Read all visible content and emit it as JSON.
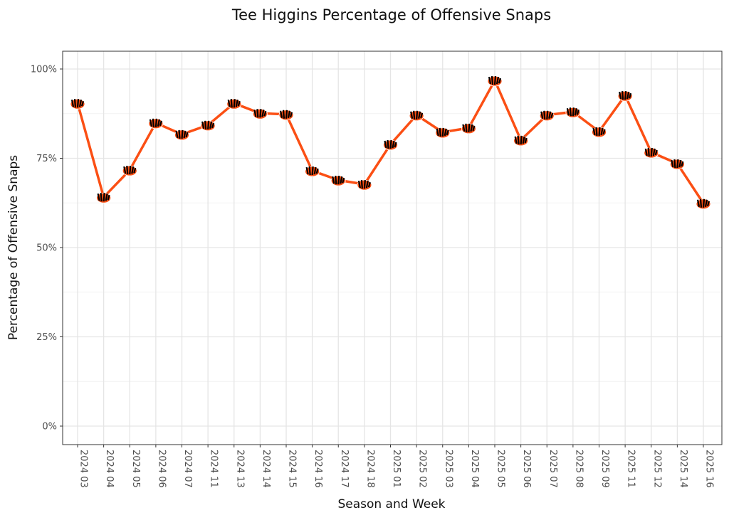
{
  "chart_data": {
    "type": "line",
    "title": "Tee Higgins Percentage of Offensive Snaps",
    "xlabel": "Season and Week",
    "ylabel": "Percentage of Offensive Snaps",
    "ylim": [
      0,
      100
    ],
    "yticks": [
      0,
      25,
      50,
      75,
      100
    ],
    "ytick_labels": [
      "0%",
      "25%",
      "50%",
      "75%",
      "100%"
    ],
    "grid": true,
    "line_color": "#FB4F14",
    "marker": "bengals-helmet-icon",
    "categories": [
      "2024 03",
      "2024 04",
      "2024 05",
      "2024 06",
      "2024 07",
      "2024 11",
      "2024 13",
      "2024 14",
      "2024 15",
      "2024 16",
      "2024 17",
      "2024 18",
      "2025 01",
      "2025 02",
      "2025 03",
      "2025 04",
      "2025 05",
      "2025 06",
      "2025 07",
      "2025 08",
      "2025 09",
      "2025 11",
      "2025 12",
      "2025 14",
      "2025 16"
    ],
    "values": [
      90.4,
      64.1,
      71.7,
      84.9,
      81.7,
      84.3,
      90.4,
      87.6,
      87.3,
      71.5,
      68.9,
      67.7,
      78.9,
      87.1,
      82.3,
      83.5,
      96.8,
      80.1,
      87.1,
      88.0,
      82.5,
      92.6,
      76.7,
      73.5,
      62.4
    ]
  }
}
